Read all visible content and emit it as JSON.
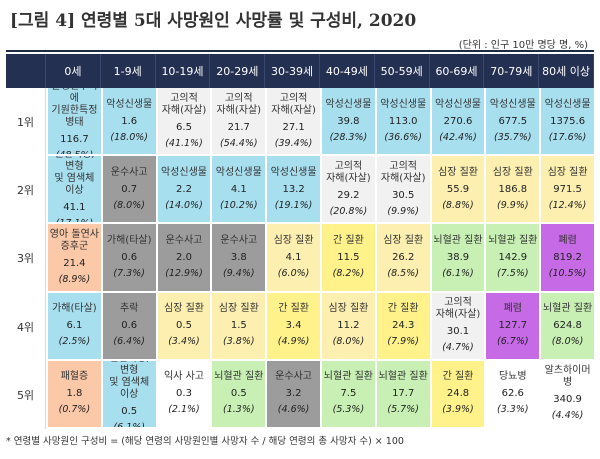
{
  "title": "[그림 4] 연령별 5대 사망원인 사망률 및 구성비, 2020",
  "unit": "(단위 : 인구 10만 명당 명, %)",
  "ages": [
    "0세",
    "1-9세",
    "10-19세",
    "20-29세",
    "30-39세",
    "40-49세",
    "50-59세",
    "60-69세",
    "70-79세",
    "80세 이상"
  ],
  "colors": {
    "header": "#243052",
    "malignant": "#a8dfef",
    "chromosomal": "#a8dfef",
    "suicide": "#f1f1f1",
    "heart": "#fcefb0",
    "accident": "#9c9c9c",
    "liver": "#fff28a",
    "cerebro": "#c8f0b4",
    "pneumonia": "#c66ae6",
    "infant": "#fbc8a8",
    "diabetes": "#ffffff",
    "alzheimer": "#ffffff",
    "neonatal": "#ffffff"
  },
  "rows": [
    {
      "rank": "1위",
      "cells": [
        {
          "cause": "출생전후기에\n기원한특정병태",
          "value": "116.7",
          "pct": "(48.5%)",
          "color": "malignant"
        },
        {
          "cause": "악성신생물",
          "value": "1.6",
          "pct": "(18.0%)",
          "color": "malignant"
        },
        {
          "cause": "고의적\n자해(자살)",
          "value": "6.5",
          "pct": "(41.1%)",
          "color": "suicide"
        },
        {
          "cause": "고의적\n자해(자살)",
          "value": "21.7",
          "pct": "(54.4%)",
          "color": "suicide"
        },
        {
          "cause": "고의적\n자해(자살)",
          "value": "27.1",
          "pct": "(39.4%)",
          "color": "suicide"
        },
        {
          "cause": "악성신생물",
          "value": "39.8",
          "pct": "(28.3%)",
          "color": "malignant"
        },
        {
          "cause": "악성신생물",
          "value": "113.0",
          "pct": "(36.6%)",
          "color": "malignant"
        },
        {
          "cause": "악성신생물",
          "value": "270.6",
          "pct": "(42.4%)",
          "color": "malignant"
        },
        {
          "cause": "악성신생물",
          "value": "677.5",
          "pct": "(35.7%)",
          "color": "malignant"
        },
        {
          "cause": "악성신생물",
          "value": "1375.6",
          "pct": "(17.6%)",
          "color": "malignant"
        }
      ]
    },
    {
      "rank": "2위",
      "cells": [
        {
          "cause": "선천기형, 변형\n및 염색체 이상",
          "value": "41.1",
          "pct": "(17.1%)",
          "color": "chromosomal"
        },
        {
          "cause": "운수사고",
          "value": "0.7",
          "pct": "(8.0%)",
          "color": "accident"
        },
        {
          "cause": "악성신생물",
          "value": "2.2",
          "pct": "(14.0%)",
          "color": "malignant"
        },
        {
          "cause": "악성신생물",
          "value": "4.1",
          "pct": "(10.2%)",
          "color": "malignant"
        },
        {
          "cause": "악성신생물",
          "value": "13.2",
          "pct": "(19.1%)",
          "color": "malignant"
        },
        {
          "cause": "고의적\n자해(자살)",
          "value": "29.2",
          "pct": "(20.8%)",
          "color": "suicide"
        },
        {
          "cause": "고의적\n자해(자살)",
          "value": "30.5",
          "pct": "(9.9%)",
          "color": "suicide"
        },
        {
          "cause": "심장 질환",
          "value": "55.9",
          "pct": "(8.8%)",
          "color": "heart"
        },
        {
          "cause": "심장 질환",
          "value": "186.8",
          "pct": "(9.9%)",
          "color": "heart"
        },
        {
          "cause": "심장 질환",
          "value": "971.5",
          "pct": "(12.4%)",
          "color": "heart"
        }
      ]
    },
    {
      "rank": "3위",
      "cells": [
        {
          "cause": "영아 돌연사\n증후군",
          "value": "21.4",
          "pct": "(8.9%)",
          "color": "infant"
        },
        {
          "cause": "가해(타살)",
          "value": "0.6",
          "pct": "(7.3%)",
          "color": "accident"
        },
        {
          "cause": "운수사고",
          "value": "2.0",
          "pct": "(12.9%)",
          "color": "accident"
        },
        {
          "cause": "운수사고",
          "value": "3.8",
          "pct": "(9.4%)",
          "color": "accident"
        },
        {
          "cause": "심장 질환",
          "value": "4.1",
          "pct": "(6.0%)",
          "color": "heart"
        },
        {
          "cause": "간 질환",
          "value": "11.5",
          "pct": "(8.2%)",
          "color": "liver"
        },
        {
          "cause": "심장 질환",
          "value": "26.2",
          "pct": "(8.5%)",
          "color": "heart"
        },
        {
          "cause": "뇌혈관 질환",
          "value": "38.9",
          "pct": "(6.1%)",
          "color": "cerebro"
        },
        {
          "cause": "뇌혈관 질환",
          "value": "142.9",
          "pct": "(7.5%)",
          "color": "cerebro"
        },
        {
          "cause": "폐렴",
          "value": "819.2",
          "pct": "(10.5%)",
          "color": "pneumonia"
        }
      ]
    },
    {
      "rank": "4위",
      "cells": [
        {
          "cause": "가해(타살)",
          "value": "6.1",
          "pct": "(2.5%)",
          "color": "malignant"
        },
        {
          "cause": "추락",
          "value": "0.6",
          "pct": "(6.4%)",
          "color": "accident"
        },
        {
          "cause": "심장 질환",
          "value": "0.5",
          "pct": "(3.4%)",
          "color": "heart"
        },
        {
          "cause": "심장 질환",
          "value": "1.5",
          "pct": "(3.8%)",
          "color": "heart"
        },
        {
          "cause": "간 질환",
          "value": "3.4",
          "pct": "(4.9%)",
          "color": "liver"
        },
        {
          "cause": "심장 질환",
          "value": "11.2",
          "pct": "(8.0%)",
          "color": "heart"
        },
        {
          "cause": "간 질환",
          "value": "24.3",
          "pct": "(7.9%)",
          "color": "liver"
        },
        {
          "cause": "고의적\n자해(자살)",
          "value": "30.1",
          "pct": "(4.7%)",
          "color": "suicide"
        },
        {
          "cause": "폐렴",
          "value": "127.7",
          "pct": "(6.7%)",
          "color": "pneumonia"
        },
        {
          "cause": "뇌혈관 질환",
          "value": "624.8",
          "pct": "(8.0%)",
          "color": "cerebro"
        }
      ]
    },
    {
      "rank": "5위",
      "cells": [
        {
          "cause": "패혈증",
          "value": "1.8",
          "pct": "(0.7%)",
          "color": "infant"
        },
        {
          "cause": "선천기형, 변형\n및 염색체 이상",
          "value": "0.5",
          "pct": "(6.1%)",
          "color": "chromosomal"
        },
        {
          "cause": "익사 사고",
          "value": "0.3",
          "pct": "(2.1%)",
          "color": "diabetes"
        },
        {
          "cause": "뇌혈관 질환",
          "value": "0.5",
          "pct": "(1.3%)",
          "color": "cerebro"
        },
        {
          "cause": "운수사고",
          "value": "3.2",
          "pct": "(4.6%)",
          "color": "accident"
        },
        {
          "cause": "뇌혈관 질환",
          "value": "7.5",
          "pct": "(5.3%)",
          "color": "cerebro"
        },
        {
          "cause": "뇌혈관 질환",
          "value": "17.7",
          "pct": "(5.7%)",
          "color": "cerebro"
        },
        {
          "cause": "간 질환",
          "value": "24.8",
          "pct": "(3.9%)",
          "color": "liver"
        },
        {
          "cause": "당뇨병",
          "value": "62.6",
          "pct": "(3.3%)",
          "color": "diabetes"
        },
        {
          "cause": "알츠하이머병",
          "value": "340.9",
          "pct": "(4.4%)",
          "color": "alzheimer"
        }
      ]
    }
  ],
  "note": "* 연령별 사망원인 구성비 = (해당 연령의 사망원인별 사망자 수 / 해당 연령의 총 사망자 수) × 100"
}
